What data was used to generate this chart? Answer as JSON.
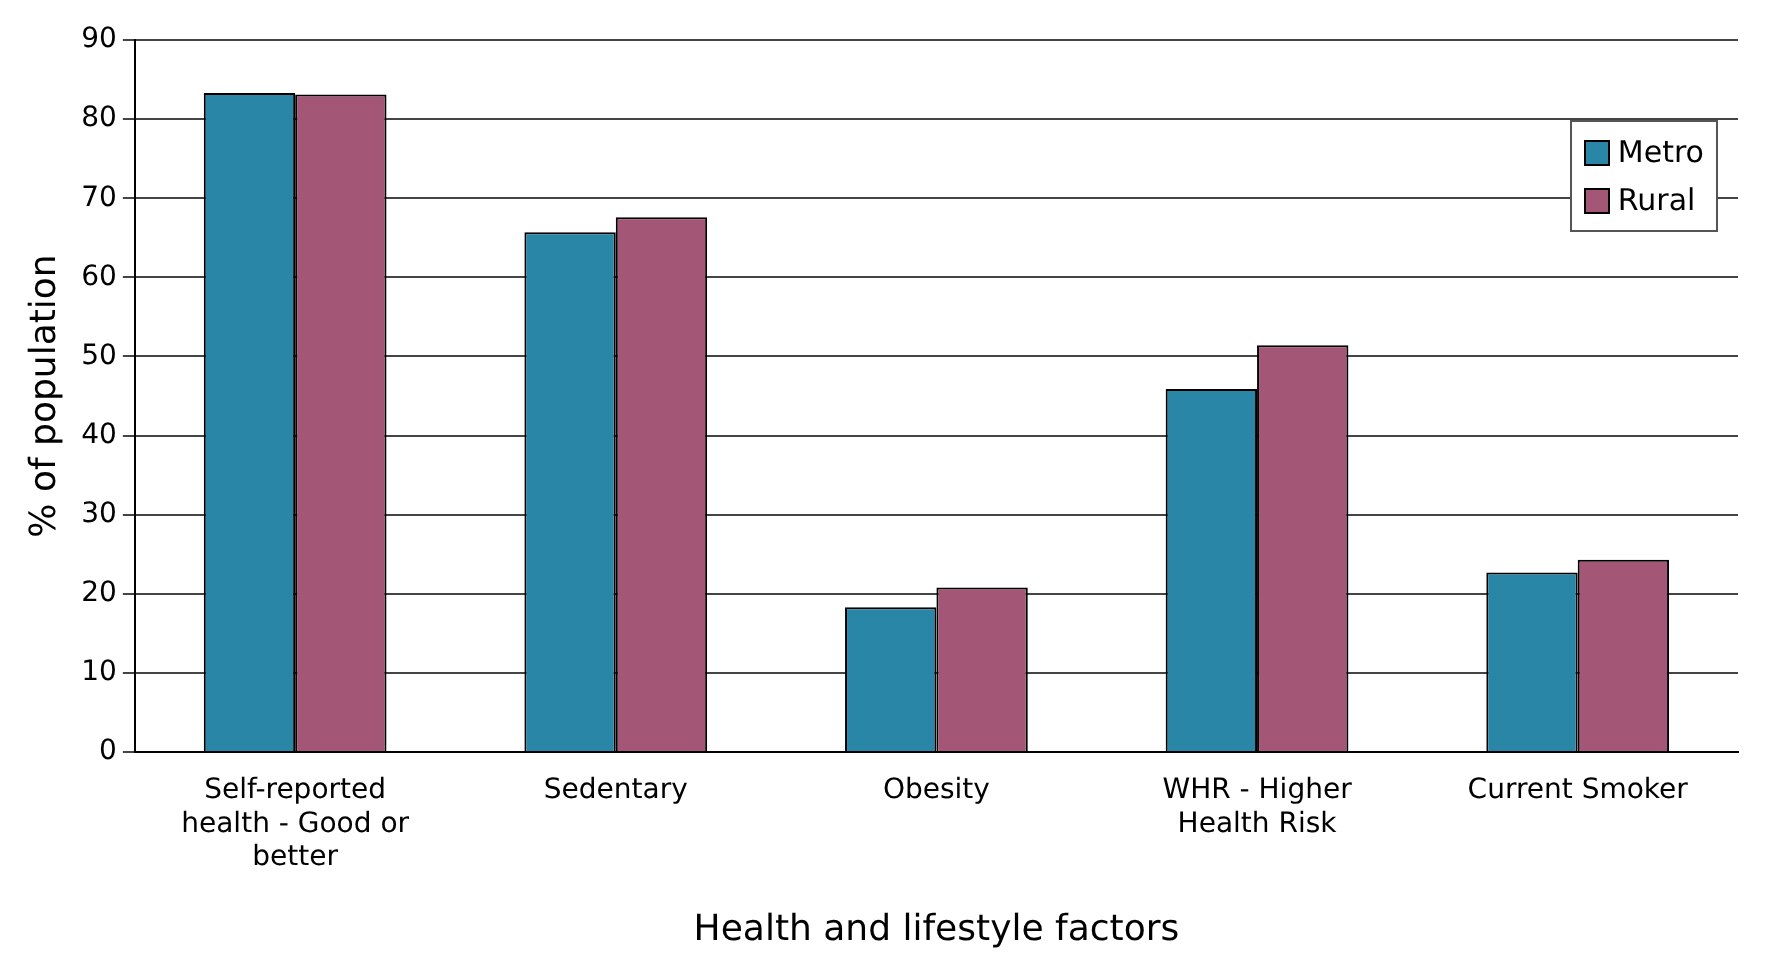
{
  "chart_data": {
    "type": "bar",
    "xlabel": "Health and lifestyle factors",
    "ylabel": "% of population",
    "categories": [
      "Self-reported health - Good or better",
      "Sedentary",
      "Obesity",
      "WHR - Higher Health Risk",
      "Current Smoker"
    ],
    "series": [
      {
        "name": "Metro",
        "color": "#2a86a6",
        "values": [
          83.3,
          65.7,
          18.3,
          45.9,
          22.7
        ]
      },
      {
        "name": "Rural",
        "color": "#a35676",
        "values": [
          83.1,
          67.6,
          20.8,
          51.4,
          24.3
        ]
      }
    ],
    "ylim": [
      0,
      90
    ],
    "yticks": [
      0,
      10,
      20,
      30,
      40,
      50,
      60,
      70,
      80,
      90
    ],
    "grid": "y",
    "legend": "top right"
  }
}
